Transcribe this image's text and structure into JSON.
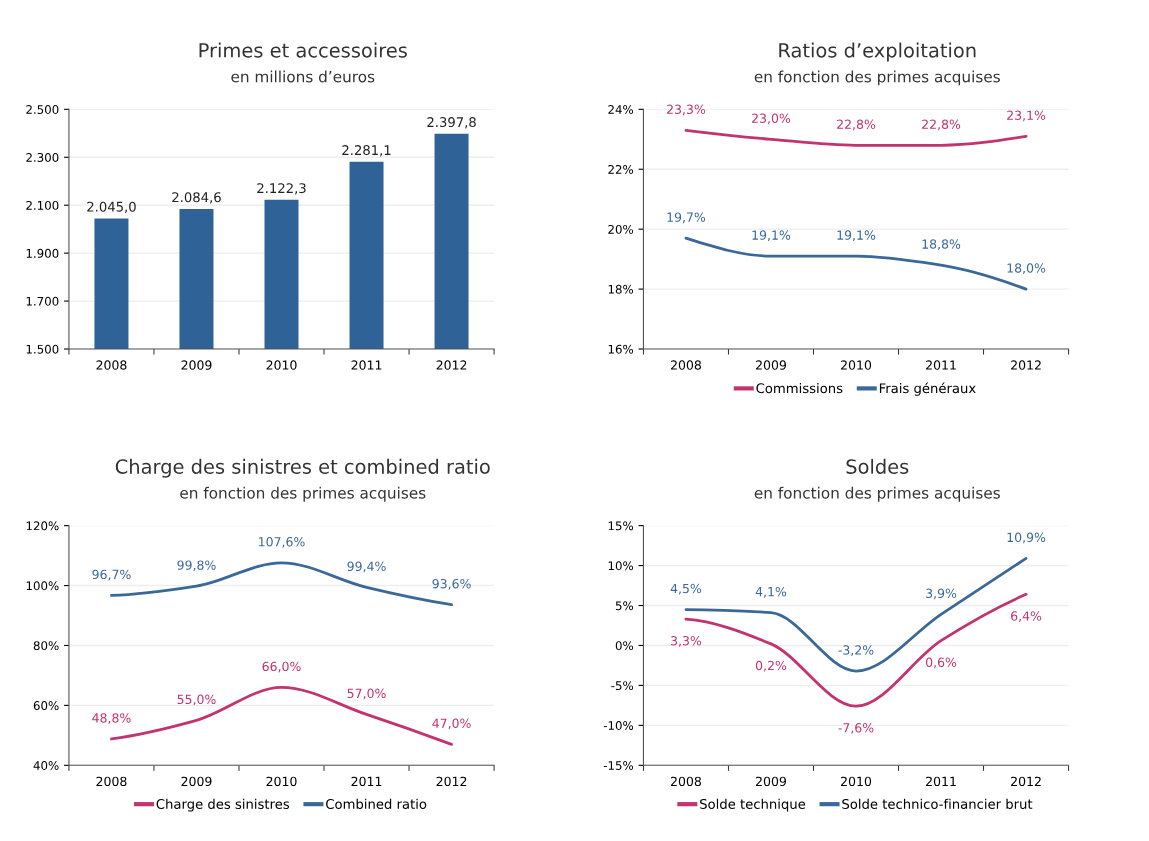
{
  "chart_data": [
    {
      "type": "bar",
      "title": "Primes et accessoires",
      "subtitle": "en millions d’euros",
      "categories": [
        "2008",
        "2009",
        "2010",
        "2011",
        "2012"
      ],
      "series": [
        {
          "color": "#2f6398",
          "values": [
            2045.0,
            2084.6,
            2122.3,
            2281.1,
            2397.8
          ],
          "value_labels": [
            "2.045,0",
            "2.084,6",
            "2.122,3",
            "2.281,1",
            "2.397,8"
          ]
        }
      ],
      "ylim": [
        1500,
        2500
      ],
      "yticks": [
        {
          "value": 1500,
          "label": "1.500"
        },
        {
          "value": 1700,
          "label": "1.700"
        },
        {
          "value": 1900,
          "label": "1.900"
        },
        {
          "value": 2100,
          "label": "2.100"
        },
        {
          "value": 2300,
          "label": "2.300"
        },
        {
          "value": 2500,
          "label": "2.500"
        }
      ],
      "grid": "y"
    },
    {
      "type": "line",
      "title": "Ratios d’exploitation",
      "subtitle": "en fonction des primes acquises",
      "categories": [
        "2008",
        "2009",
        "2010",
        "2011",
        "2012"
      ],
      "series": [
        {
          "name": "Commissions",
          "color": "#c2336f",
          "values": [
            23.3,
            23.0,
            22.8,
            22.8,
            23.1
          ],
          "value_labels": [
            "23,3%",
            "23,0%",
            "22,8%",
            "22,8%",
            "23,1%"
          ]
        },
        {
          "name": "Frais généraux",
          "color": "#3a6899",
          "values": [
            19.7,
            19.1,
            19.1,
            18.8,
            18.0
          ],
          "value_labels": [
            "19,7%",
            "19,1%",
            "19,1%",
            "18,8%",
            "18,0%"
          ]
        }
      ],
      "ylim": [
        16,
        24
      ],
      "yticks": [
        {
          "value": 16,
          "label": "16%"
        },
        {
          "value": 18,
          "label": "18%"
        },
        {
          "value": 20,
          "label": "20%"
        },
        {
          "value": 22,
          "label": "22%"
        },
        {
          "value": 24,
          "label": "24%"
        }
      ],
      "grid": "y",
      "legend": "bottom",
      "marker": "none"
    },
    {
      "type": "line",
      "title": "Charge des sinistres et combined ratio",
      "subtitle": "en fonction des primes acquises",
      "categories": [
        "2008",
        "2009",
        "2010",
        "2011",
        "2012"
      ],
      "series": [
        {
          "name": "Charge des sinistres",
          "color": "#c2336f",
          "values": [
            48.8,
            55.0,
            66.0,
            57.0,
            47.0
          ],
          "value_labels": [
            "48,8%",
            "55,0%",
            "66,0%",
            "57,0%",
            "47,0%"
          ]
        },
        {
          "name": "Combined ratio",
          "color": "#3a6899",
          "values": [
            96.7,
            99.8,
            107.6,
            99.4,
            93.6
          ],
          "value_labels": [
            "96,7%",
            "99,8%",
            "107,6%",
            "99,4%",
            "93,6%"
          ]
        }
      ],
      "ylim": [
        40,
        120
      ],
      "yticks": [
        {
          "value": 40,
          "label": "40%"
        },
        {
          "value": 60,
          "label": "60%"
        },
        {
          "value": 80,
          "label": "80%"
        },
        {
          "value": 100,
          "label": "100%"
        },
        {
          "value": 120,
          "label": "120%"
        }
      ],
      "grid": "y",
      "legend": "bottom",
      "marker": "none"
    },
    {
      "type": "line",
      "title": "Soldes",
      "subtitle": "en fonction des primes acquises",
      "categories": [
        "2008",
        "2009",
        "2010",
        "2011",
        "2012"
      ],
      "series": [
        {
          "name": "Solde technique",
          "color": "#c2336f",
          "values": [
            3.3,
            0.2,
            -7.6,
            0.6,
            6.4
          ],
          "value_labels": [
            "3,3%",
            "0,2%",
            "-7,6%",
            "0,6%",
            "6,4%"
          ]
        },
        {
          "name": "Solde technico-financier brut",
          "color": "#3a6899",
          "values": [
            4.5,
            4.1,
            -3.2,
            3.9,
            10.9
          ],
          "value_labels": [
            "4,5%",
            "4,1%",
            "-3,2%",
            "3,9%",
            "10,9%"
          ]
        }
      ],
      "ylim": [
        -15,
        15
      ],
      "yticks": [
        {
          "value": -15,
          "label": "-15%"
        },
        {
          "value": -10,
          "label": "-10%"
        },
        {
          "value": -5,
          "label": "-5%"
        },
        {
          "value": 0,
          "label": "0%"
        },
        {
          "value": 5,
          "label": "5%"
        },
        {
          "value": 10,
          "label": "10%"
        },
        {
          "value": 15,
          "label": "15%"
        }
      ],
      "grid": "y",
      "legend": "bottom",
      "marker": "none"
    }
  ]
}
